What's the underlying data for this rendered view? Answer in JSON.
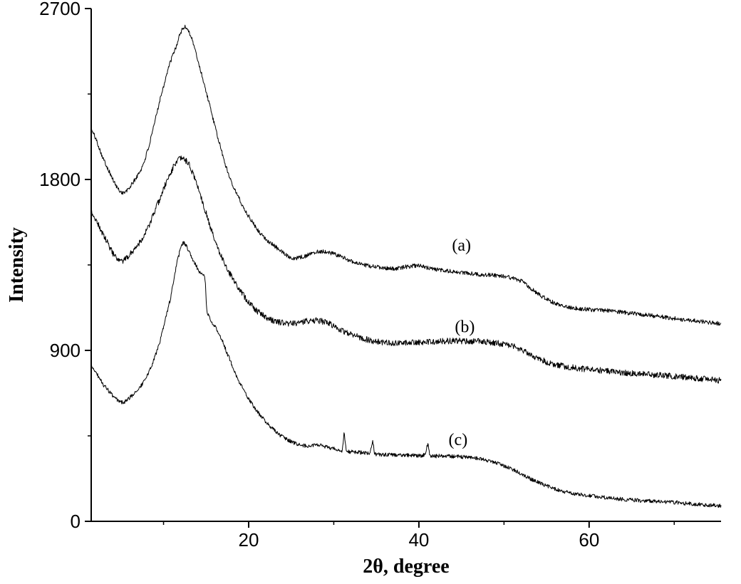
{
  "figure": {
    "background": "#ffffff",
    "line_color": "#000000"
  },
  "chart_data": {
    "type": "line",
    "title": "",
    "xlabel": "2θ, degree",
    "ylabel": "Intensity",
    "xlim": [
      1.5,
      75.5
    ],
    "ylim": [
      0,
      2700
    ],
    "x_ticks": [
      20,
      40,
      60
    ],
    "x_minor_ticks": [
      10,
      30,
      50,
      70
    ],
    "y_ticks": [
      0,
      900,
      1800,
      2700
    ],
    "y_minor_ticks": [
      450,
      1350,
      2250
    ],
    "grid": false,
    "legend": "none",
    "series": [
      {
        "name": "a",
        "label": "(a)",
        "label_x": 45.0,
        "label_y": 1455,
        "noise": 11,
        "seed": 101,
        "keypoints": [
          [
            1.5,
            2060
          ],
          [
            3,
            1900
          ],
          [
            5,
            1735
          ],
          [
            6.5,
            1790
          ],
          [
            8,
            1935
          ],
          [
            10,
            2290
          ],
          [
            11.5,
            2500
          ],
          [
            12.4,
            2600
          ],
          [
            13.2,
            2555
          ],
          [
            14.2,
            2400
          ],
          [
            15,
            2260
          ],
          [
            16.2,
            2050
          ],
          [
            17.5,
            1845
          ],
          [
            19,
            1690
          ],
          [
            20,
            1605
          ],
          [
            21.5,
            1510
          ],
          [
            23,
            1450
          ],
          [
            25,
            1390
          ],
          [
            26.5,
            1395
          ],
          [
            28,
            1420
          ],
          [
            29.5,
            1415
          ],
          [
            31,
            1390
          ],
          [
            33,
            1355
          ],
          [
            35,
            1340
          ],
          [
            37,
            1330
          ],
          [
            38.5,
            1340
          ],
          [
            40,
            1345
          ],
          [
            41.5,
            1330
          ],
          [
            43,
            1320
          ],
          [
            45,
            1310
          ],
          [
            47,
            1300
          ],
          [
            49,
            1295
          ],
          [
            50.5,
            1285
          ],
          [
            52,
            1265
          ],
          [
            53.5,
            1215
          ],
          [
            55,
            1170
          ],
          [
            56.5,
            1140
          ],
          [
            58,
            1125
          ],
          [
            60,
            1115
          ],
          [
            62,
            1110
          ],
          [
            64,
            1100
          ],
          [
            66,
            1090
          ],
          [
            68,
            1080
          ],
          [
            70,
            1068
          ],
          [
            72,
            1058
          ],
          [
            74,
            1048
          ],
          [
            75.5,
            1042
          ]
        ]
      },
      {
        "name": "b",
        "label": "(b)",
        "label_x": 45.4,
        "label_y": 1025,
        "noise": 16,
        "seed": 202,
        "keypoints": [
          [
            1.5,
            1625
          ],
          [
            3,
            1500
          ],
          [
            4.8,
            1370
          ],
          [
            6.5,
            1430
          ],
          [
            8,
            1530
          ],
          [
            9.5,
            1690
          ],
          [
            10.8,
            1830
          ],
          [
            11.8,
            1905
          ],
          [
            12.8,
            1890
          ],
          [
            13.8,
            1790
          ],
          [
            14.8,
            1650
          ],
          [
            16,
            1480
          ],
          [
            17.5,
            1330
          ],
          [
            19,
            1215
          ],
          [
            20.5,
            1130
          ],
          [
            22,
            1075
          ],
          [
            23.5,
            1050
          ],
          [
            25,
            1042
          ],
          [
            26.5,
            1052
          ],
          [
            28,
            1058
          ],
          [
            29.5,
            1040
          ],
          [
            31,
            1005
          ],
          [
            32.5,
            980
          ],
          [
            34,
            955
          ],
          [
            36,
            942
          ],
          [
            38,
            938
          ],
          [
            40,
            942
          ],
          [
            42,
            946
          ],
          [
            44,
            950
          ],
          [
            46,
            948
          ],
          [
            48,
            945
          ],
          [
            50,
            932
          ],
          [
            51.5,
            915
          ],
          [
            53,
            880
          ],
          [
            54.5,
            848
          ],
          [
            56,
            825
          ],
          [
            58,
            810
          ],
          [
            60,
            800
          ],
          [
            62,
            792
          ],
          [
            64,
            783
          ],
          [
            66,
            776
          ],
          [
            68,
            770
          ],
          [
            70,
            764
          ],
          [
            72,
            756
          ],
          [
            74,
            748
          ],
          [
            75.5,
            742
          ]
        ]
      },
      {
        "name": "c",
        "label": "(c)",
        "label_x": 44.6,
        "label_y": 432,
        "noise": 10,
        "seed": 303,
        "keypoints": [
          [
            1.5,
            815
          ],
          [
            3,
            715
          ],
          [
            5,
            628
          ],
          [
            6.5,
            672
          ],
          [
            8,
            760
          ],
          [
            9.5,
            935
          ],
          [
            10.8,
            1170
          ],
          [
            11.8,
            1400
          ],
          [
            12.3,
            1465
          ],
          [
            12.9,
            1430
          ],
          [
            13.6,
            1365
          ],
          [
            14.3,
            1310
          ],
          [
            14.9,
            1272
          ],
          [
            15.05,
            1120
          ],
          [
            15.5,
            1060
          ],
          [
            16.5,
            990
          ],
          [
            17.5,
            880
          ],
          [
            19,
            725
          ],
          [
            20.5,
            610
          ],
          [
            22,
            525
          ],
          [
            23.5,
            460
          ],
          [
            25,
            420
          ],
          [
            26.5,
            398
          ],
          [
            28,
            402
          ],
          [
            29.3,
            390
          ],
          [
            30.5,
            378
          ],
          [
            31.0,
            376
          ],
          [
            31.22,
            458
          ],
          [
            31.45,
            376
          ],
          [
            32.5,
            366
          ],
          [
            33.8,
            360
          ],
          [
            34.3,
            362
          ],
          [
            34.55,
            420
          ],
          [
            34.8,
            358
          ],
          [
            36,
            352
          ],
          [
            37.5,
            350
          ],
          [
            39,
            348
          ],
          [
            40.8,
            352
          ],
          [
            41.05,
            408
          ],
          [
            41.3,
            348
          ],
          [
            42.5,
            345
          ],
          [
            44,
            342
          ],
          [
            45.5,
            338
          ],
          [
            47,
            330
          ],
          [
            48.3,
            318
          ],
          [
            49.5,
            300
          ],
          [
            50.8,
            278
          ],
          [
            52,
            250
          ],
          [
            53.5,
            215
          ],
          [
            55,
            188
          ],
          [
            56.5,
            162
          ],
          [
            58,
            148
          ],
          [
            60,
            135
          ],
          [
            62,
            125
          ],
          [
            64,
            116
          ],
          [
            66,
            110
          ],
          [
            68,
            104
          ],
          [
            70,
            100
          ],
          [
            72,
            92
          ],
          [
            74,
            86
          ],
          [
            75.5,
            82
          ]
        ]
      }
    ]
  }
}
